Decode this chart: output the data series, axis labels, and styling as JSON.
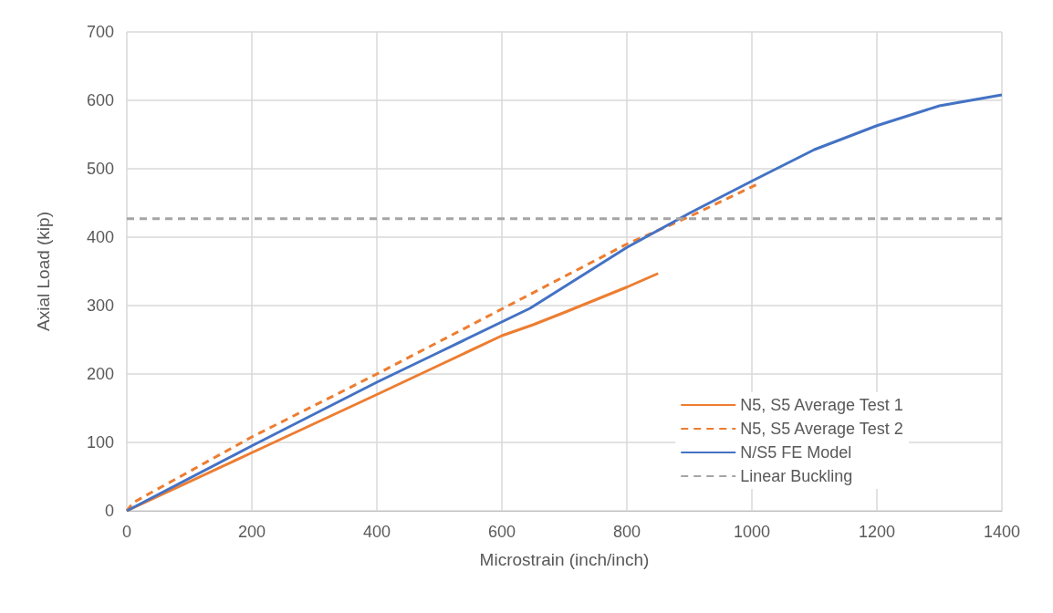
{
  "chart_data": {
    "type": "line",
    "xlabel": "Microstrain (inch/inch)",
    "ylabel": "Axial Load (kip)",
    "xlim": [
      0,
      1400
    ],
    "xticks": [
      0,
      200,
      400,
      600,
      800,
      1000,
      1200,
      1400
    ],
    "ylim": [
      0,
      700
    ],
    "yticks": [
      0,
      100,
      200,
      300,
      400,
      500,
      600,
      700
    ],
    "grid": true,
    "legend": "bottom right",
    "marker": "none",
    "series": [
      {
        "name": "N5, S5 Average Test 1",
        "color": "#ed7d31",
        "line_style": "solid",
        "x": [
          0,
          200,
          400,
          500,
          600,
          650,
          700,
          800,
          850
        ],
        "values": [
          0,
          85,
          170,
          213,
          256,
          272,
          290,
          327,
          347
        ]
      },
      {
        "name": "N5, S5 Average Test 2",
        "color": "#ed7d31",
        "line_style": "dashed",
        "x": [
          0,
          10,
          200,
          400,
          600,
          800,
          900,
          1010
        ],
        "values": [
          0,
          12,
          108,
          200,
          295,
          390,
          430,
          478
        ]
      },
      {
        "name": "N/S5 FE Model",
        "color": "#4472c4",
        "line_style": "solid",
        "x": [
          0,
          200,
          400,
          500,
          645,
          800,
          900,
          1000,
          1100,
          1200,
          1300,
          1400
        ],
        "values": [
          0,
          95,
          188,
          232,
          296,
          385,
          435,
          482,
          528,
          563,
          592,
          608
        ]
      },
      {
        "name": "Linear Buckling",
        "color": "#a5a5a5",
        "line_style": "dashed",
        "x": [
          0,
          1400
        ],
        "values": [
          427,
          427
        ]
      }
    ]
  }
}
